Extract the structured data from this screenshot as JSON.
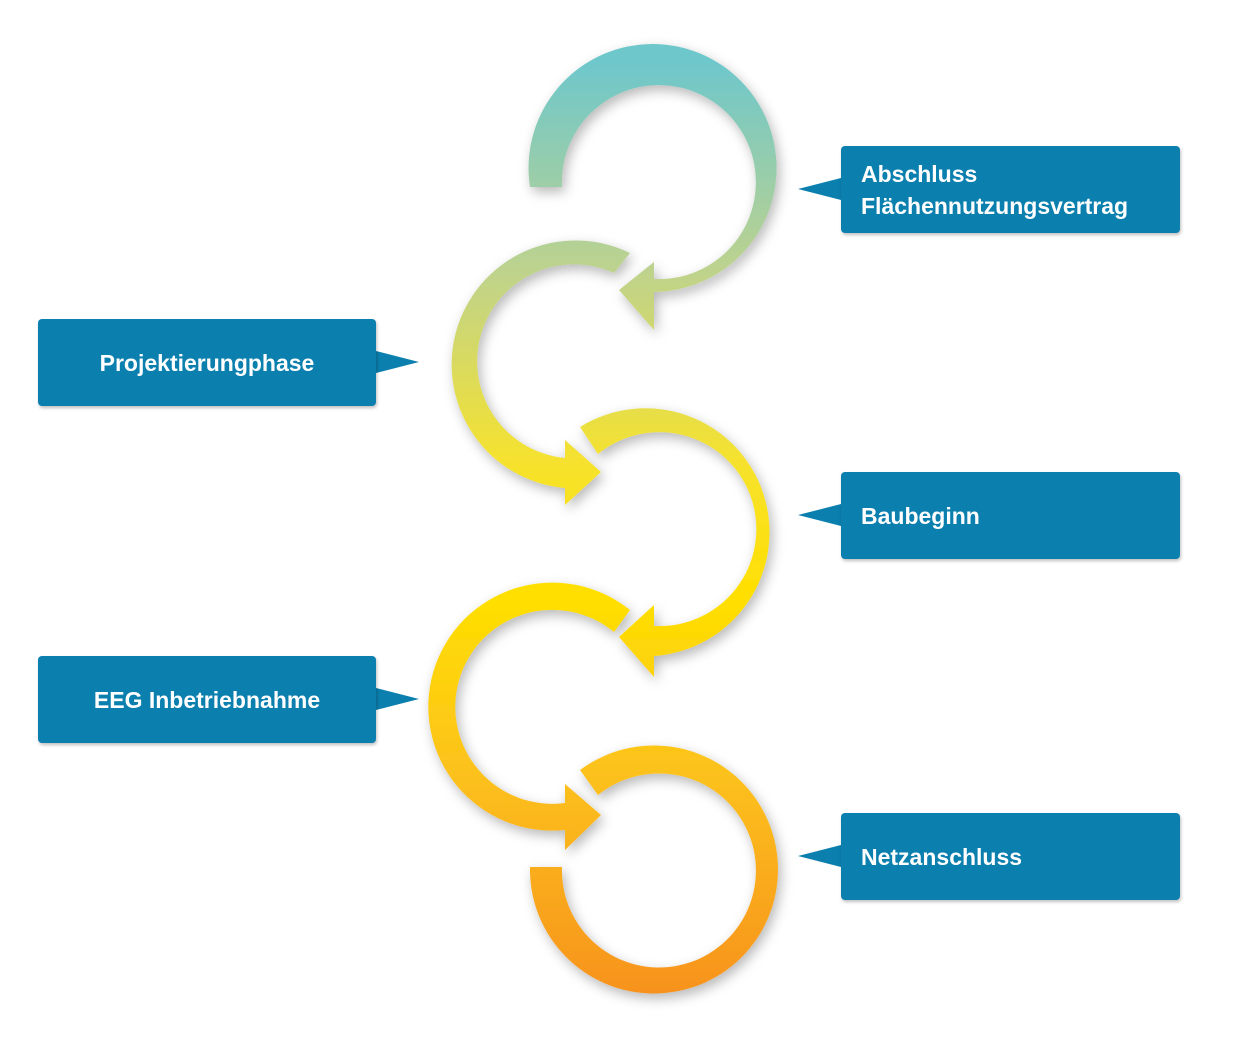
{
  "labels": {
    "abschluss_line1": "Abschluss",
    "abschluss_line2": "Flächennutzungsvertrag",
    "projektierung": "Projektierungphase",
    "baubeginn": "Baubeginn",
    "eeg": "EEG Inbetriebnahme",
    "netzanschluss": "Netzanschluss"
  },
  "colors": {
    "box": "#0b7fae",
    "arc_teal": "#78c9c8",
    "arc_green": "#c3d48c",
    "arc_yellow": "#ffe100",
    "arc_gold": "#fcc81a",
    "arc_orange": "#f7941e"
  }
}
